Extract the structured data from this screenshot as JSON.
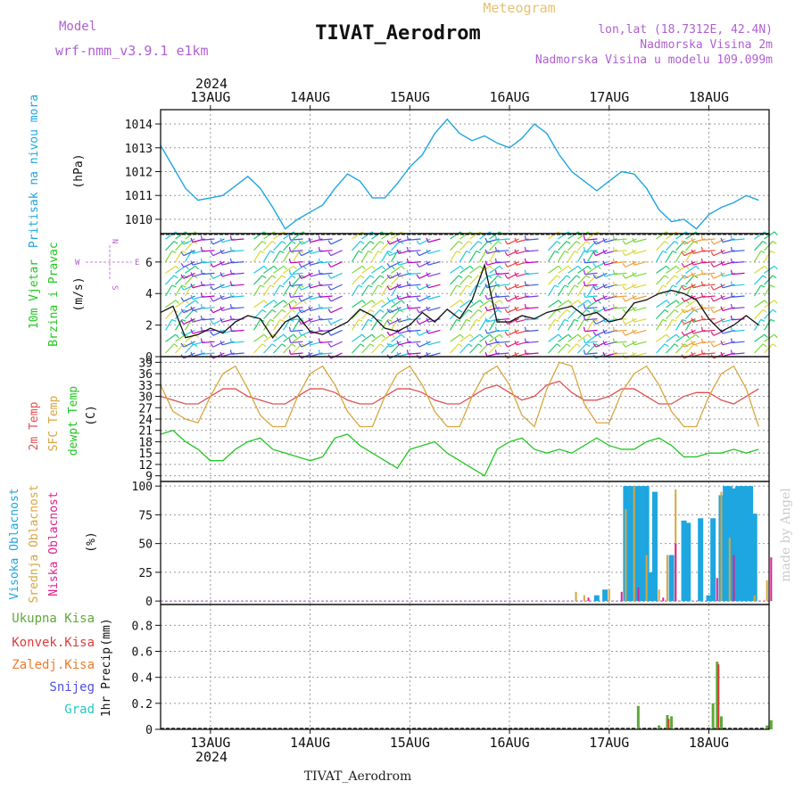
{
  "header": {
    "model_label": "Model",
    "model_name": "wrf-nmm_v3.9.1 e1km",
    "meteogram_label": "Meteogram",
    "station": "TIVAT_Aerodrom",
    "lonlat": "lon,lat (18.7312E, 42.4N)",
    "elevation": "Nadmorska Visina 2m",
    "model_elevation": "Nadmorska Visina u modelu 109.099m",
    "footer_station": "TIVAT_Aerodrom",
    "watermark": "made by Angel",
    "year": "2024"
  },
  "colors": {
    "pressure": "#1ea6e0",
    "temp2m": "#e05050",
    "sfc": "#d8a640",
    "dewpt": "#22c722",
    "high_cloud": "#1ea6e0",
    "mid_cloud": "#d8a640",
    "low_cloud": "#e0208f",
    "total_precip": "#5fa83a",
    "conv_precip": "#e03a3a",
    "freez_precip": "#f07a2a",
    "snow": "#5050e0",
    "grad": "#20c8c8",
    "purple_text": "#b060d0"
  },
  "chart_data": [
    {
      "id": "pressure",
      "type": "line",
      "ylabel_main": "Pritisak na nivou mora",
      "ylabel_unit": "(hPa)",
      "ylim": [
        1009.4,
        1014.6
      ],
      "yticks": [
        1010,
        1011,
        1012,
        1013,
        1014
      ],
      "grid": true,
      "x_unit_note": "hours from 2024-08-12 12:00 UTC",
      "x": [
        0,
        3,
        6,
        9,
        12,
        15,
        18,
        21,
        24,
        27,
        30,
        33,
        36,
        39,
        42,
        45,
        48,
        51,
        54,
        57,
        60,
        63,
        66,
        69,
        72,
        75,
        78,
        81,
        84,
        87,
        90,
        93,
        96,
        99,
        102,
        105,
        108,
        111,
        114,
        117,
        120,
        123,
        126,
        129,
        132,
        135,
        138,
        141,
        144
      ],
      "values": [
        1013.1,
        1012.2,
        1011.3,
        1010.8,
        1010.9,
        1011.0,
        1011.4,
        1011.8,
        1011.3,
        1010.5,
        1009.6,
        1010.0,
        1010.3,
        1010.6,
        1011.3,
        1011.9,
        1011.6,
        1010.9,
        1010.9,
        1011.5,
        1012.2,
        1012.7,
        1013.6,
        1014.2,
        1013.6,
        1013.3,
        1013.5,
        1013.2,
        1013.0,
        1013.4,
        1014.0,
        1013.6,
        1012.7,
        1012.0,
        1011.6,
        1011.2,
        1011.6,
        1012.0,
        1011.9,
        1011.3,
        1010.4,
        1009.9,
        1010.0,
        1009.6,
        1010.2,
        1010.5,
        1010.7,
        1011.0,
        1010.8
      ]
    },
    {
      "id": "wind",
      "type": "line",
      "ylabel_main": "10m Vjetar",
      "ylabel_sub": "Brzina i Pravac",
      "ylabel_unit": "(m/s)",
      "compass": {
        "north": "N",
        "south": "S",
        "west": "W",
        "east": "E"
      },
      "ylim": [
        0,
        7.8
      ],
      "yticks": [
        0,
        2,
        4,
        6
      ],
      "grid": true,
      "x": [
        0,
        3,
        6,
        9,
        12,
        15,
        18,
        21,
        24,
        27,
        30,
        33,
        36,
        39,
        42,
        45,
        48,
        51,
        54,
        57,
        60,
        63,
        66,
        69,
        72,
        75,
        78,
        81,
        84,
        87,
        90,
        93,
        96,
        99,
        102,
        105,
        108,
        111,
        114,
        117,
        120,
        123,
        126,
        129,
        132,
        135,
        138,
        141,
        144
      ],
      "values": [
        2.8,
        3.2,
        1.2,
        1.4,
        1.8,
        1.5,
        2.2,
        2.6,
        2.4,
        1.2,
        2.2,
        2.6,
        1.6,
        1.4,
        1.8,
        2.2,
        3.0,
        2.6,
        1.8,
        1.6,
        2.0,
        2.8,
        2.2,
        3.0,
        2.4,
        3.6,
        5.8,
        2.2,
        2.2,
        2.6,
        2.4,
        2.8,
        3.0,
        3.2,
        2.6,
        2.8,
        2.2,
        2.4,
        3.4,
        3.6,
        4.0,
        4.2,
        4.0,
        3.6,
        2.4,
        1.6,
        2.0,
        2.6,
        2.0
      ]
    },
    {
      "id": "temperature",
      "type": "line",
      "ylabel_lines": [
        "2m Temp",
        "SFC Temp",
        "dewpt Temp"
      ],
      "ylabel_unit": "(C)",
      "ylim": [
        7.5,
        40.5
      ],
      "yticks": [
        9,
        12,
        15,
        18,
        21,
        24,
        27,
        30,
        33,
        36,
        39
      ],
      "grid": true,
      "x": [
        0,
        3,
        6,
        9,
        12,
        15,
        18,
        21,
        24,
        27,
        30,
        33,
        36,
        39,
        42,
        45,
        48,
        51,
        54,
        57,
        60,
        63,
        66,
        69,
        72,
        75,
        78,
        81,
        84,
        87,
        90,
        93,
        96,
        99,
        102,
        105,
        108,
        111,
        114,
        117,
        120,
        123,
        126,
        129,
        132,
        135,
        138,
        141,
        144
      ],
      "series": [
        {
          "name": "2m Temp",
          "values": [
            30,
            29,
            28,
            28,
            30,
            32,
            32,
            30,
            29,
            28,
            28,
            30,
            32,
            32,
            31,
            29,
            28,
            28,
            30,
            32,
            32,
            31,
            29,
            28,
            28,
            30,
            32,
            33,
            31,
            29,
            30,
            33,
            34,
            31,
            29,
            29,
            30,
            32,
            32,
            30,
            28,
            28,
            30,
            31,
            31,
            29,
            28,
            30,
            32
          ]
        },
        {
          "name": "SFC Temp",
          "values": [
            33,
            26,
            24,
            23,
            30,
            36,
            38,
            32,
            25,
            22,
            22,
            30,
            36,
            38,
            33,
            26,
            22,
            22,
            30,
            36,
            38,
            33,
            26,
            22,
            22,
            30,
            36,
            38,
            33,
            25,
            22,
            32,
            39,
            38,
            28,
            23,
            23,
            31,
            36,
            38,
            33,
            26,
            22,
            22,
            30,
            36,
            38,
            32,
            22
          ]
        },
        {
          "name": "dewpt Temp",
          "values": [
            20,
            21,
            18,
            16,
            13,
            13,
            16,
            18,
            19,
            16,
            15,
            14,
            13,
            14,
            19,
            20,
            17,
            15,
            13,
            11,
            16,
            17,
            18,
            15,
            13,
            11,
            9,
            16,
            18,
            19,
            16,
            15,
            16,
            15,
            17,
            19,
            17,
            16,
            16,
            18,
            19,
            17,
            14,
            14,
            15,
            15,
            16,
            15,
            16
          ]
        }
      ]
    },
    {
      "id": "cloud",
      "type": "bar",
      "ylabel_lines": [
        "Visoka Oblacnost",
        "Srednja Oblacnost",
        "Niska Oblacnost"
      ],
      "ylabel_unit": "(%)",
      "ylim": [
        -3,
        104
      ],
      "yticks": [
        0,
        25,
        50,
        75,
        100
      ],
      "grid": true,
      "x_unit_note": "hours from 2024-08-12 12:00 UTC",
      "high": [
        [
          105,
          5
        ],
        [
          107,
          10
        ],
        [
          112,
          100
        ],
        [
          113,
          100
        ],
        [
          114,
          100
        ],
        [
          115,
          100
        ],
        [
          116,
          100
        ],
        [
          117,
          100
        ],
        [
          118,
          25
        ],
        [
          119,
          95
        ],
        [
          123,
          40
        ],
        [
          126,
          70
        ],
        [
          127,
          68
        ],
        [
          130,
          72
        ],
        [
          132,
          5
        ],
        [
          133,
          72
        ],
        [
          135,
          92
        ],
        [
          136,
          100
        ],
        [
          137,
          100
        ],
        [
          138,
          98
        ],
        [
          139,
          100
        ],
        [
          140,
          100
        ],
        [
          141,
          100
        ],
        [
          142,
          100
        ],
        [
          143,
          76
        ]
      ],
      "mid": [
        [
          100,
          8
        ],
        [
          102,
          5
        ],
        [
          108,
          10
        ],
        [
          112,
          80
        ],
        [
          114,
          100
        ],
        [
          117,
          40
        ],
        [
          120,
          10
        ],
        [
          122,
          40
        ],
        [
          124,
          97
        ],
        [
          135,
          95
        ],
        [
          137,
          55
        ],
        [
          143,
          5
        ],
        [
          146,
          18
        ]
      ],
      "low": [
        [
          103,
          3
        ],
        [
          111,
          8
        ],
        [
          115,
          12
        ],
        [
          121,
          3
        ],
        [
          124,
          50
        ],
        [
          134,
          20
        ],
        [
          138,
          40
        ],
        [
          147,
          38
        ]
      ]
    },
    {
      "id": "precip",
      "type": "bar",
      "ylabel_main": "1hr Precip",
      "ylabel_unit": "(mm)",
      "legend": [
        "Ukupna Kisa",
        "Konvek.Kisa",
        "Zaledj.Kisa",
        "Snijeg",
        "Grad"
      ],
      "ylim": [
        0,
        0.96
      ],
      "yticks": [
        0,
        0.2,
        0.4,
        0.6,
        0.8
      ],
      "grid": true,
      "x_unit_note": "hours from 2024-08-12 12:00 UTC",
      "total": [
        [
          115,
          0.18
        ],
        [
          120,
          0.03
        ],
        [
          122,
          0.11
        ],
        [
          123,
          0.1
        ],
        [
          133,
          0.2
        ],
        [
          134,
          0.52
        ],
        [
          135,
          0.1
        ],
        [
          146,
          0.03
        ],
        [
          147,
          0.07
        ]
      ],
      "convective": [
        [
          122,
          0.08
        ],
        [
          134,
          0.5
        ]
      ]
    }
  ],
  "x_axis": {
    "day_labels": [
      "13AUG",
      "14AUG",
      "15AUG",
      "16AUG",
      "17AUG",
      "18AUG"
    ],
    "day_hours": [
      12,
      36,
      60,
      84,
      108,
      132
    ],
    "xlim": [
      0,
      146.5
    ]
  }
}
